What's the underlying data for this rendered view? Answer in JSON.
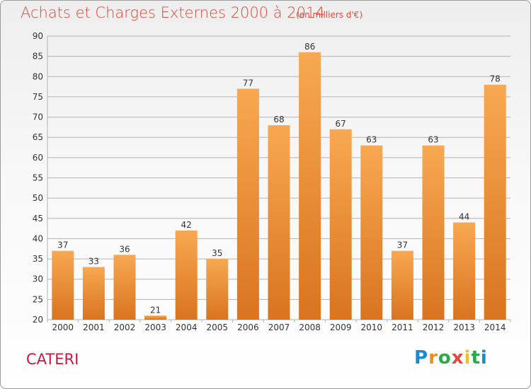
{
  "header": {
    "title": "Achats et Charges Externes 2000 à 2014",
    "subtitle": "(en milliers d'€)"
  },
  "footer": {
    "location": "CATERI",
    "brand": "Proxiti",
    "brand_letters": [
      {
        "ch": "P",
        "color": "#1e88d0"
      },
      {
        "ch": "r",
        "color": "#f08c1e"
      },
      {
        "ch": "o",
        "color": "#2ea84a"
      },
      {
        "ch": "x",
        "color": "#e0483c"
      },
      {
        "ch": "i",
        "color": "#f0c01e"
      },
      {
        "ch": "t",
        "color": "#2ea84a"
      },
      {
        "ch": "i",
        "color": "#1e88d0"
      }
    ]
  },
  "colors": {
    "bar_top": "#f8a852",
    "bar_bottom": "#d9741f",
    "grid": "#b4b4b4",
    "axis_text": "#333333"
  },
  "chart_data": {
    "type": "bar",
    "title": "Achats et Charges Externes 2000 à 2014",
    "subtitle": "(en milliers d'€)",
    "categories": [
      "2000",
      "2001",
      "2002",
      "2003",
      "2004",
      "2005",
      "2006",
      "2007",
      "2008",
      "2009",
      "2010",
      "2011",
      "2012",
      "2013",
      "2014"
    ],
    "values": [
      37,
      33,
      36,
      21,
      42,
      35,
      77,
      68,
      86,
      67,
      63,
      37,
      63,
      44,
      78
    ],
    "ylim": [
      20,
      90
    ],
    "yticks": [
      20,
      25,
      30,
      35,
      40,
      45,
      50,
      55,
      60,
      65,
      70,
      75,
      80,
      85,
      90
    ],
    "grid": true,
    "data_labels": true
  }
}
